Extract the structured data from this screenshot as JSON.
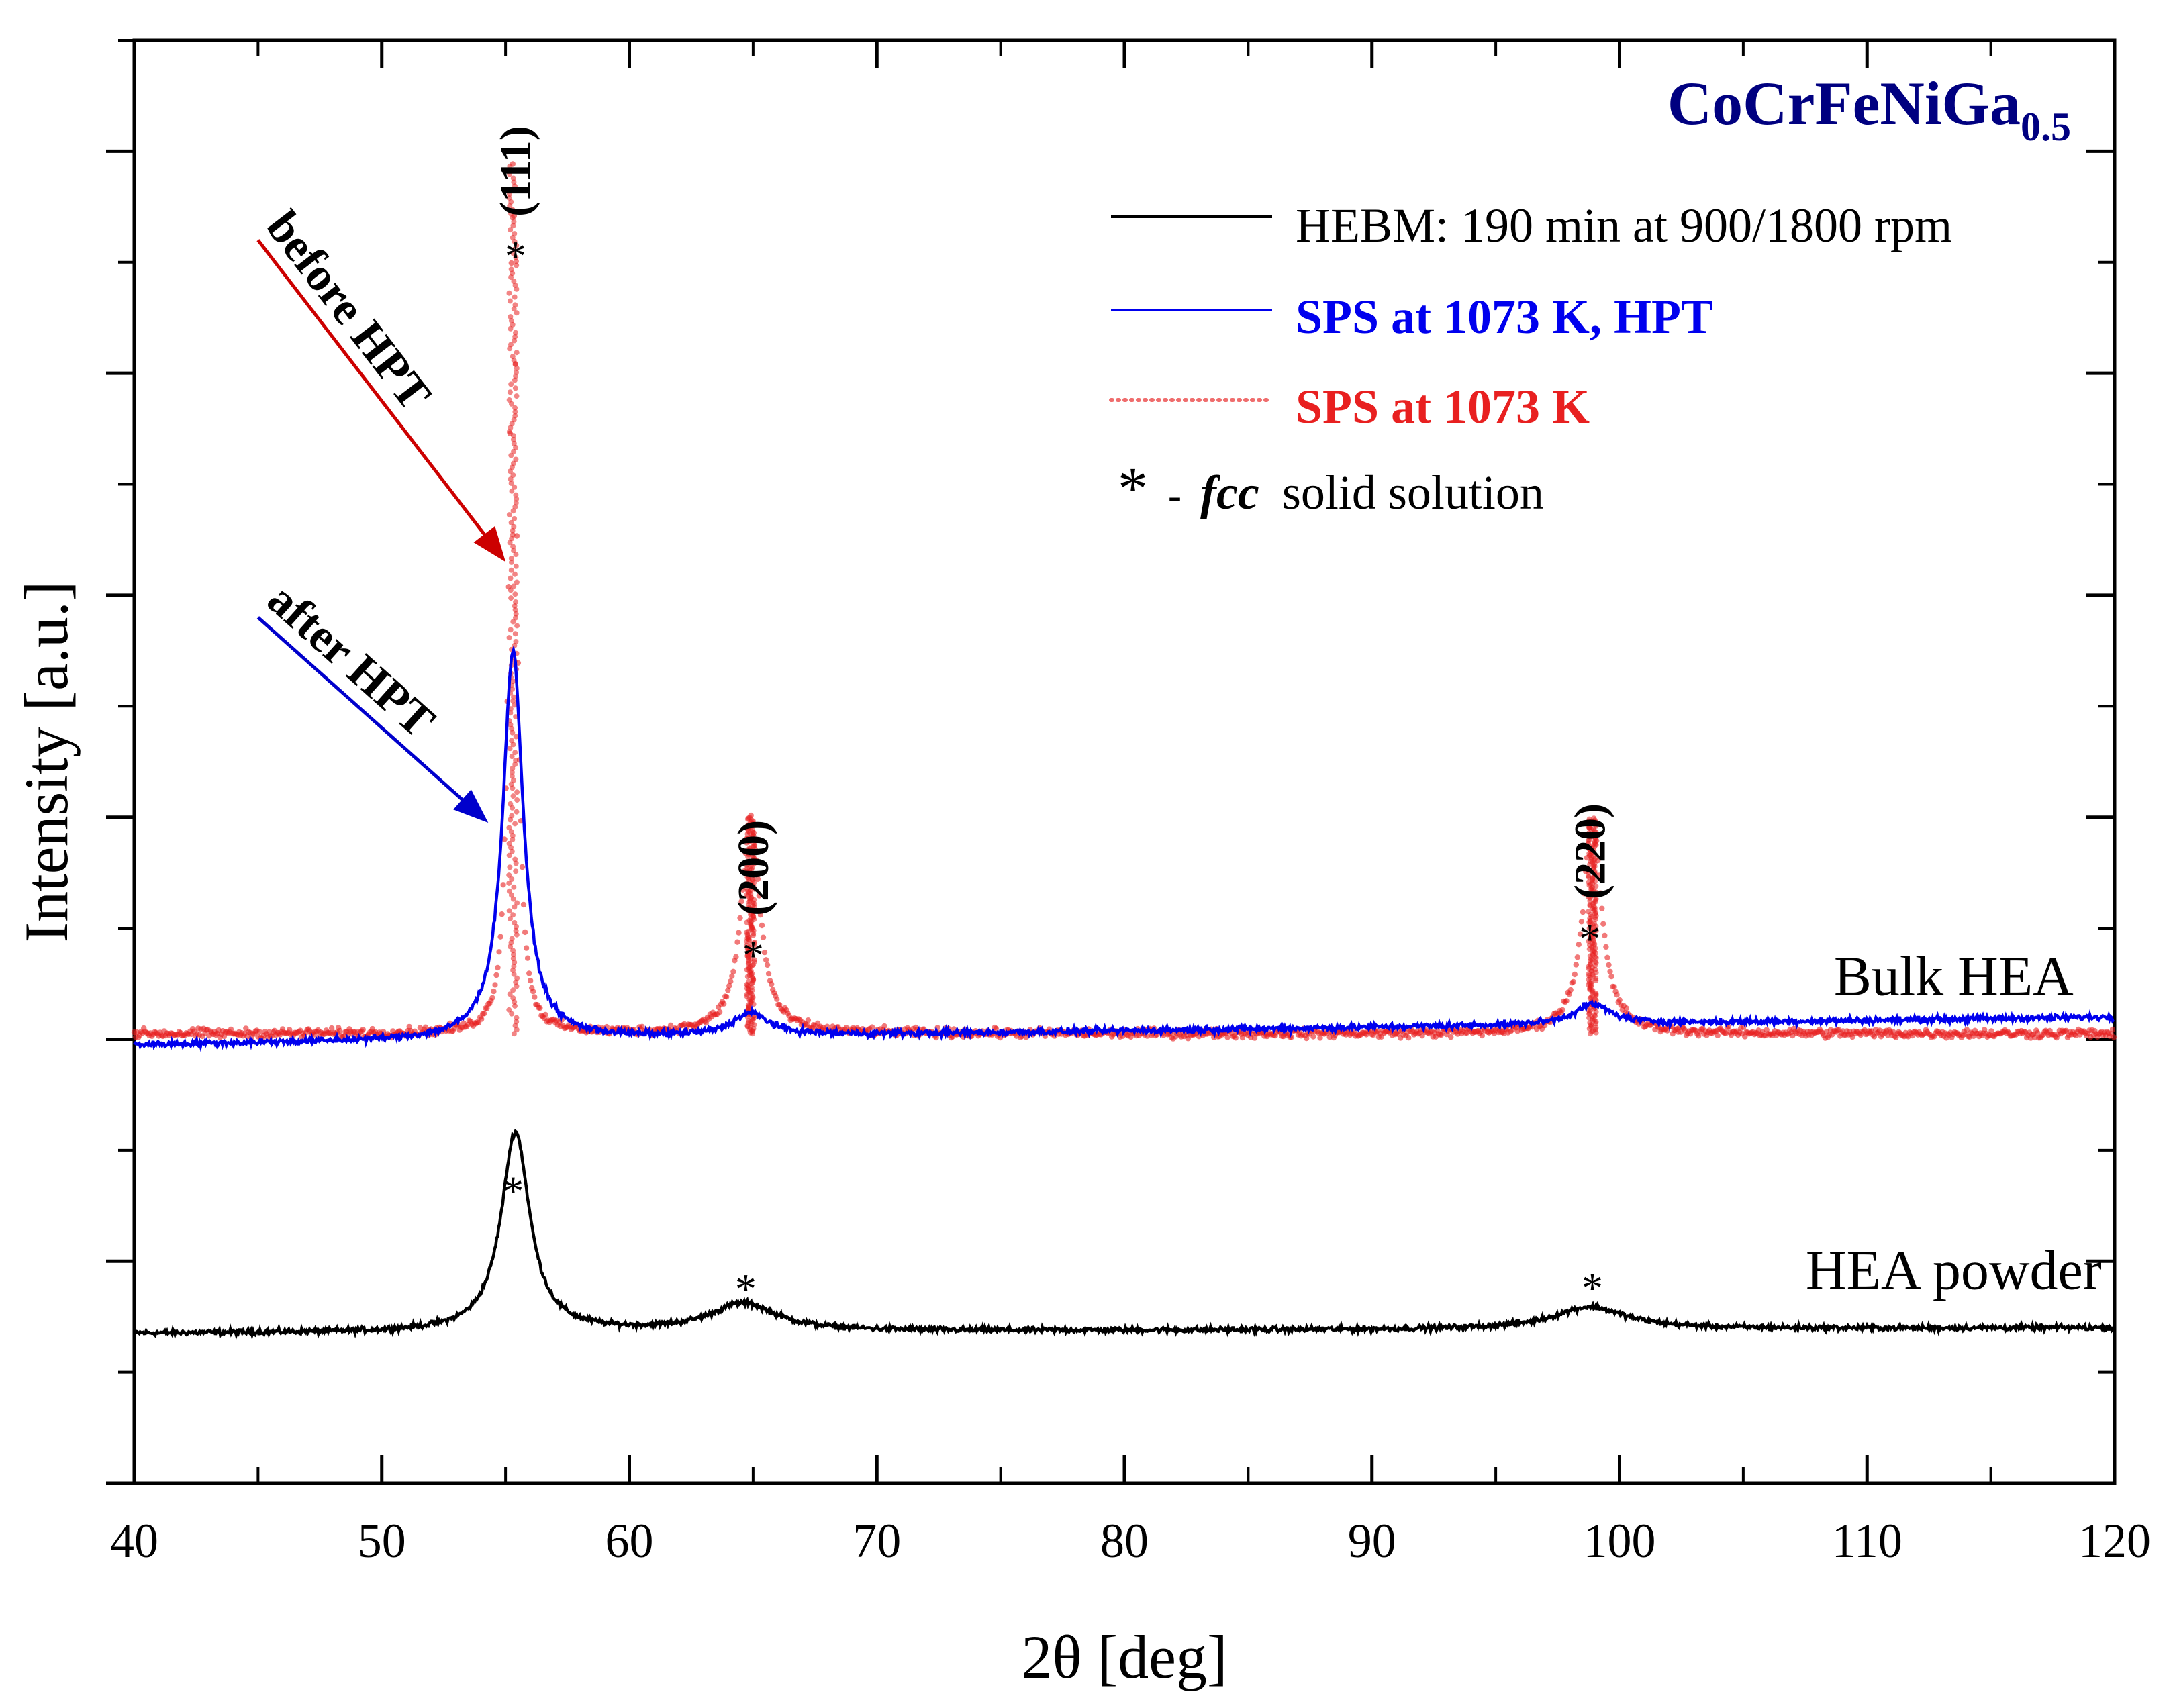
{
  "chart_data": {
    "type": "line",
    "title": "CoCrFeNiGa",
    "title_subscript": "0.5",
    "xlabel": "2θ [deg]",
    "ylabel": "Intensity [a.u.]",
    "xlim": [
      40,
      120
    ],
    "ylim": [
      0,
      13
    ],
    "x_ticks": [
      40,
      50,
      60,
      70,
      80,
      90,
      100,
      110,
      120
    ],
    "x_tick_labels": [
      "40",
      "50",
      "60",
      "70",
      "80",
      "90",
      "100",
      "110",
      "120"
    ],
    "y_tick_labels_shown": false,
    "legend": {
      "position": "top-right",
      "entries": [
        {
          "label": "HEBM: 190 min at 900/1800 rpm",
          "series": "hebm"
        },
        {
          "label": "SPS at 1073 K, HPT",
          "series": "sps_hpt"
        },
        {
          "label": "SPS at 1073 K",
          "series": "sps"
        },
        {
          "label_marker": "*",
          "label_dash": "-",
          "label_italic": "fcc",
          "label_rest": "solid solution"
        }
      ]
    },
    "series": [
      {
        "id": "hebm",
        "name": "HEBM: 190 min at 900/1800 rpm",
        "group_label": "HEA powder",
        "color": "#000000",
        "style": "solid",
        "baseline": 1.35,
        "baseline_drift": 0.05,
        "noise": 0.035,
        "peaks": [
          {
            "x": 55.4,
            "height": 1.8,
            "width": 0.7
          },
          {
            "x": 64.6,
            "height": 0.25,
            "width": 1.6
          },
          {
            "x": 98.8,
            "height": 0.2,
            "width": 1.8
          }
        ]
      },
      {
        "id": "sps_hpt",
        "name": "SPS at 1073 K, HPT",
        "group_label": "Bulk HEA",
        "color": "#0000ee",
        "style": "solid",
        "baseline": 3.95,
        "baseline_drift": 0.25,
        "noise": 0.04,
        "peaks": [
          {
            "x": 55.3,
            "height": 3.5,
            "width": 0.5
          },
          {
            "x": 64.9,
            "height": 0.2,
            "width": 0.9
          },
          {
            "x": 98.9,
            "height": 0.18,
            "width": 0.9
          }
        ]
      },
      {
        "id": "sps",
        "name": "SPS at 1073 K",
        "group_label": "Bulk HEA",
        "color": "#e82020",
        "style": "dotted",
        "baseline": 4.05,
        "baseline_drift": 0.0,
        "noise": 0.06,
        "peaks": [
          {
            "x": 55.3,
            "height": 7.85,
            "width": 0.18
          },
          {
            "x": 64.9,
            "height": 1.95,
            "width": 0.45
          },
          {
            "x": 98.9,
            "height": 1.95,
            "width": 0.45
          }
        ]
      }
    ],
    "peak_labels": [
      {
        "x": 55.4,
        "y": 11.35,
        "text": "(111)",
        "marker": "*"
      },
      {
        "x": 65.0,
        "y": 5.05,
        "text": "(200)",
        "marker": "*"
      },
      {
        "x": 98.8,
        "y": 5.2,
        "text": "(220)",
        "marker": "*"
      }
    ],
    "powder_markers": [
      {
        "x": 55.3,
        "y": 2.5,
        "text": "*"
      },
      {
        "x": 64.7,
        "y": 1.62,
        "text": "*"
      },
      {
        "x": 98.9,
        "y": 1.63,
        "text": "*"
      }
    ],
    "annotations": [
      {
        "text": "Bulk HEA",
        "x": 113.5,
        "y": 4.4
      },
      {
        "text": "HEA powder",
        "x": 113.5,
        "y": 1.75
      },
      {
        "text": "before HPT",
        "arrow_from": [
          45.0,
          11.2
        ],
        "arrow_to": [
          55.0,
          8.3
        ],
        "color": "#cc0000"
      },
      {
        "text": "after HPT",
        "arrow_from": [
          45.0,
          7.8
        ],
        "arrow_to": [
          54.3,
          5.95
        ],
        "color": "#0000cc"
      }
    ]
  },
  "colors": {
    "title": "#000080",
    "axes": "#000000",
    "sps": "#e82020",
    "sps_hpt": "#0000ee",
    "hebm": "#000000",
    "before_arrow": "#cc0000",
    "after_arrow": "#0000cc"
  }
}
